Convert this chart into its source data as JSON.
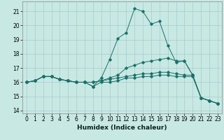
{
  "xlabel": "Humidex (Indice chaleur)",
  "bg_color": "#c8e8e4",
  "grid_color": "#a8ccca",
  "line_color": "#1a7068",
  "xlim": [
    -0.5,
    23.5
  ],
  "ylim": [
    13.8,
    21.7
  ],
  "yticks": [
    14,
    15,
    16,
    17,
    18,
    19,
    20,
    21
  ],
  "xticks": [
    0,
    1,
    2,
    3,
    4,
    5,
    6,
    7,
    8,
    9,
    10,
    11,
    12,
    13,
    14,
    15,
    16,
    17,
    18,
    19,
    20,
    21,
    22,
    23
  ],
  "lines": [
    {
      "x": [
        0,
        1,
        2,
        3,
        4,
        5,
        6,
        7,
        8,
        9,
        10,
        11,
        12,
        13,
        14,
        15,
        16,
        17,
        18,
        19,
        20,
        21,
        22,
        23
      ],
      "y": [
        16.0,
        16.1,
        16.4,
        16.4,
        16.2,
        16.1,
        16.0,
        16.0,
        15.7,
        16.3,
        17.6,
        19.1,
        19.5,
        21.2,
        21.0,
        20.1,
        20.3,
        18.6,
        17.4,
        17.5,
        16.5,
        14.9,
        14.7,
        14.5
      ]
    },
    {
      "x": [
        0,
        1,
        2,
        3,
        4,
        5,
        6,
        7,
        8,
        9,
        10,
        11,
        12,
        13,
        14,
        15,
        16,
        17,
        18,
        19,
        20,
        21,
        22,
        23
      ],
      "y": [
        16.0,
        16.1,
        16.4,
        16.4,
        16.2,
        16.1,
        16.0,
        16.0,
        16.0,
        16.1,
        16.3,
        16.5,
        17.0,
        17.2,
        17.4,
        17.5,
        17.6,
        17.7,
        17.5,
        17.5,
        16.5,
        14.9,
        14.7,
        14.5
      ]
    },
    {
      "x": [
        0,
        1,
        2,
        3,
        4,
        5,
        6,
        7,
        8,
        9,
        10,
        11,
        12,
        13,
        14,
        15,
        16,
        17,
        18,
        19,
        20,
        21,
        22,
        23
      ],
      "y": [
        16.0,
        16.1,
        16.4,
        16.4,
        16.2,
        16.1,
        16.0,
        16.0,
        16.0,
        16.1,
        16.2,
        16.3,
        16.4,
        16.5,
        16.6,
        16.6,
        16.7,
        16.7,
        16.6,
        16.5,
        16.5,
        14.9,
        14.7,
        14.5
      ]
    },
    {
      "x": [
        0,
        1,
        2,
        3,
        4,
        5,
        6,
        7,
        8,
        9,
        10,
        11,
        12,
        13,
        14,
        15,
        16,
        17,
        18,
        19,
        20,
        21,
        22,
        23
      ],
      "y": [
        16.0,
        16.1,
        16.4,
        16.4,
        16.2,
        16.1,
        16.0,
        16.0,
        15.7,
        16.0,
        16.0,
        16.1,
        16.3,
        16.3,
        16.4,
        16.4,
        16.5,
        16.5,
        16.4,
        16.4,
        16.4,
        14.9,
        14.7,
        14.5
      ]
    }
  ]
}
